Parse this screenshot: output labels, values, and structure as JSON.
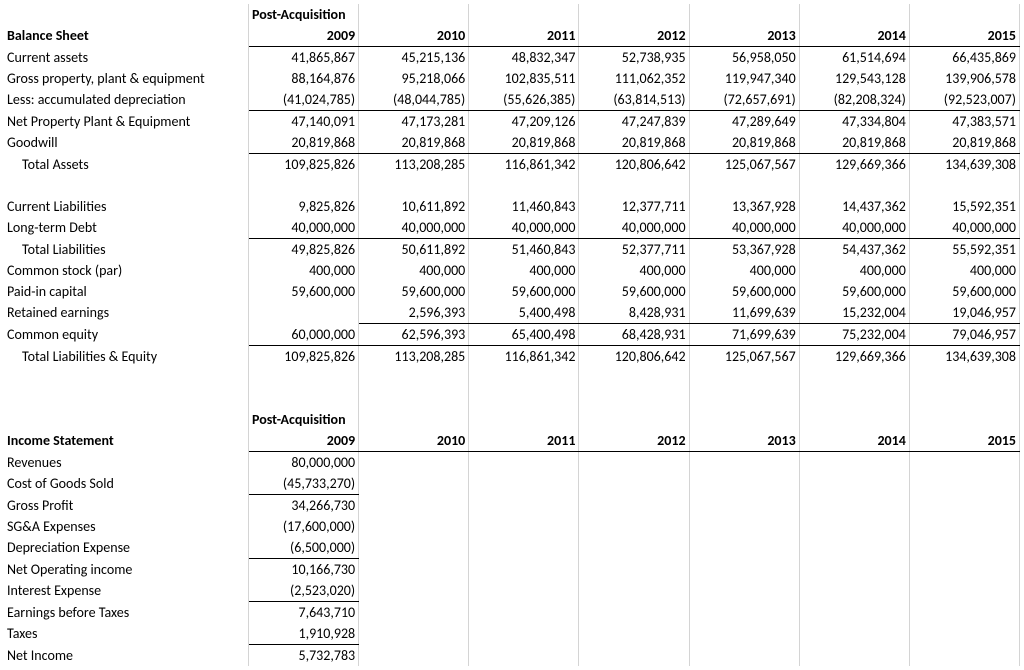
{
  "post_acq": "Post-Acquisition",
  "years": [
    "2009",
    "2010",
    "2011",
    "2012",
    "2013",
    "2014",
    "2015"
  ],
  "balance_sheet": {
    "title": "Balance Sheet",
    "rows": [
      {
        "label": "Current assets",
        "vals": [
          "41,865,867",
          "45,215,136",
          "48,832,347",
          "52,738,935",
          "56,958,050",
          "61,514,694",
          "66,435,869"
        ],
        "indent": false
      },
      {
        "label": "Gross property, plant & equipment",
        "vals": [
          "88,164,876",
          "95,218,066",
          "102,835,511",
          "111,062,352",
          "119,947,340",
          "129,543,128",
          "139,906,578"
        ],
        "indent": false
      },
      {
        "label": "Less: accumulated depreciation",
        "vals": [
          "(41,024,785)",
          "(48,044,785)",
          "(55,626,385)",
          "(63,814,513)",
          "(72,657,691)",
          "(82,208,324)",
          "(92,523,007)"
        ],
        "indent": false,
        "underline": true
      },
      {
        "label": "Net Property Plant & Equipment",
        "vals": [
          "47,140,091",
          "47,173,281",
          "47,209,126",
          "47,247,839",
          "47,289,649",
          "47,334,804",
          "47,383,571"
        ],
        "indent": false
      },
      {
        "label": "Goodwill",
        "vals": [
          "20,819,868",
          "20,819,868",
          "20,819,868",
          "20,819,868",
          "20,819,868",
          "20,819,868",
          "20,819,868"
        ],
        "indent": false,
        "underline": true
      },
      {
        "label": "Total Assets",
        "vals": [
          "109,825,826",
          "113,208,285",
          "116,861,342",
          "120,806,642",
          "125,067,567",
          "129,669,366",
          "134,639,308"
        ],
        "indent": true
      }
    ],
    "rows2": [
      {
        "label": "Current Liabilities",
        "vals": [
          "9,825,826",
          "10,611,892",
          "11,460,843",
          "12,377,711",
          "13,367,928",
          "14,437,362",
          "15,592,351"
        ],
        "indent": false
      },
      {
        "label": "Long-term Debt",
        "vals": [
          "40,000,000",
          "40,000,000",
          "40,000,000",
          "40,000,000",
          "40,000,000",
          "40,000,000",
          "40,000,000"
        ],
        "indent": false,
        "underline": true
      },
      {
        "label": "Total Liabilities",
        "vals": [
          "49,825,826",
          "50,611,892",
          "51,460,843",
          "52,377,711",
          "53,367,928",
          "54,437,362",
          "55,592,351"
        ],
        "indent": true
      },
      {
        "label": "Common stock (par)",
        "vals": [
          "400,000",
          "400,000",
          "400,000",
          "400,000",
          "400,000",
          "400,000",
          "400,000"
        ],
        "indent": false
      },
      {
        "label": "Paid-in capital",
        "vals": [
          "59,600,000",
          "59,600,000",
          "59,600,000",
          "59,600,000",
          "59,600,000",
          "59,600,000",
          "59,600,000"
        ],
        "indent": false
      },
      {
        "label": "Retained earnings",
        "vals": [
          "",
          "2,596,393",
          "5,400,498",
          "8,428,931",
          "11,699,639",
          "15,232,004",
          "19,046,957"
        ],
        "indent": false,
        "underline": true
      },
      {
        "label": "Common equity",
        "vals": [
          "60,000,000",
          "62,596,393",
          "65,400,498",
          "68,428,931",
          "71,699,639",
          "75,232,004",
          "79,046,957"
        ],
        "indent": false,
        "underline": true
      },
      {
        "label": "Total Liabilities & Equity",
        "vals": [
          "109,825,826",
          "113,208,285",
          "116,861,342",
          "120,806,642",
          "125,067,567",
          "129,669,366",
          "134,639,308"
        ],
        "indent": true
      }
    ]
  },
  "income_statement": {
    "title": "Income Statement",
    "rows": [
      {
        "label": "Revenues",
        "vals": [
          "80,000,000",
          "",
          "",
          "",
          "",
          "",
          ""
        ],
        "indent": false
      },
      {
        "label": "Cost of Goods Sold",
        "vals": [
          "(45,733,270)",
          "",
          "",
          "",
          "",
          "",
          ""
        ],
        "indent": false,
        "underline": true
      },
      {
        "label": "Gross Profit",
        "vals": [
          "34,266,730",
          "",
          "",
          "",
          "",
          "",
          ""
        ],
        "indent": false
      },
      {
        "label": "SG&A Expenses",
        "vals": [
          "(17,600,000)",
          "",
          "",
          "",
          "",
          "",
          ""
        ],
        "indent": false
      },
      {
        "label": "Depreciation Expense",
        "vals": [
          "(6,500,000)",
          "",
          "",
          "",
          "",
          "",
          ""
        ],
        "indent": false,
        "underline": true
      },
      {
        "label": "Net Operating income",
        "vals": [
          "10,166,730",
          "",
          "",
          "",
          "",
          "",
          ""
        ],
        "indent": false
      },
      {
        "label": "Interest Expense",
        "vals": [
          "(2,523,020)",
          "",
          "",
          "",
          "",
          "",
          ""
        ],
        "indent": false,
        "underline": true
      },
      {
        "label": "Earnings before Taxes",
        "vals": [
          "7,643,710",
          "",
          "",
          "",
          "",
          "",
          ""
        ],
        "indent": false
      },
      {
        "label": "Taxes",
        "vals": [
          "1,910,928",
          "",
          "",
          "",
          "",
          "",
          ""
        ],
        "indent": false,
        "underline": true
      },
      {
        "label": "Net Income",
        "vals": [
          "5,732,783",
          "",
          "",
          "",
          "",
          "",
          ""
        ],
        "indent": false
      }
    ]
  }
}
